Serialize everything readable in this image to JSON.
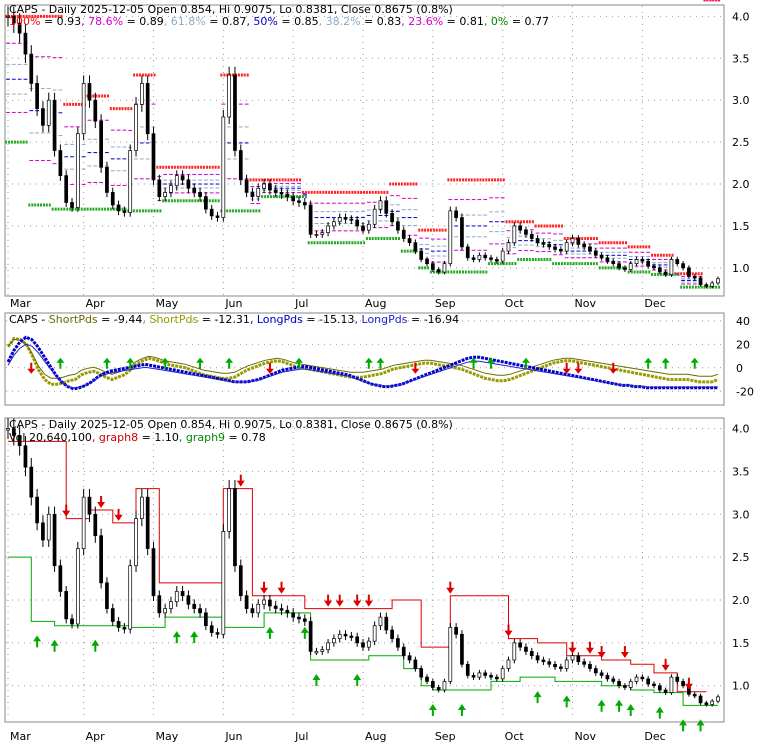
{
  "chart_data": [
    {
      "type": "candlestick",
      "ticker": "CAPS",
      "header": "CAPS - Daily 2025-12-05 Open 0.854, Hi 0.9075, Lo 0.8381, Close 0.8675 (0.8%)",
      "fib_levels": [
        {
          "label": "100%",
          "value": "0.93",
          "color": "#ff0000"
        },
        {
          "label": "78.6%",
          "value": "0.89",
          "color": "#cc00cc"
        },
        {
          "label": "61.8%",
          "value": "0.87",
          "color": "#8fa8c8"
        },
        {
          "label": "50%",
          "value": "0.85",
          "color": "#0000cc"
        },
        {
          "label": "38.2%",
          "value": "0.83",
          "color": "#8fa8c8"
        },
        {
          "label": "23.6%",
          "value": "0.81",
          "color": "#cc00cc"
        },
        {
          "label": "0%",
          "value": "0.77",
          "color": "#008800"
        }
      ],
      "x_months": [
        "Mar",
        "Apr",
        "May",
        "Jun",
        "Jul",
        "Aug",
        "Sep",
        "Oct",
        "Nov",
        "Dec"
      ],
      "y_ticks": [
        "4.0",
        "3.5",
        "3.0",
        "2.5",
        "2.0",
        "1.5",
        "1.0"
      ],
      "ylim": [
        0.7,
        4.1
      ],
      "closes": [
        4.0,
        3.92,
        3.8,
        3.55,
        3.2,
        2.9,
        2.7,
        3.0,
        2.4,
        2.1,
        1.78,
        1.72,
        2.6,
        3.2,
        3.0,
        2.75,
        2.2,
        1.9,
        1.75,
        1.68,
        1.66,
        2.4,
        2.95,
        3.2,
        2.6,
        2.05,
        1.85,
        1.9,
        1.98,
        2.1,
        2.05,
        1.95,
        1.9,
        1.85,
        1.7,
        1.62,
        1.6,
        2.8,
        3.3,
        2.4,
        2.05,
        1.9,
        1.85,
        1.95,
        2.0,
        1.93,
        1.9,
        1.88,
        1.85,
        1.8,
        1.78,
        1.75,
        1.4,
        1.4,
        1.42,
        1.5,
        1.55,
        1.6,
        1.58,
        1.57,
        1.5,
        1.45,
        1.52,
        1.7,
        1.8,
        1.65,
        1.55,
        1.45,
        1.35,
        1.3,
        1.2,
        1.1,
        1.05,
        0.98,
        0.95,
        1.05,
        1.68,
        1.6,
        1.25,
        1.12,
        1.1,
        1.15,
        1.12,
        1.1,
        1.08,
        1.2,
        1.3,
        1.5,
        1.45,
        1.4,
        1.35,
        1.3,
        1.28,
        1.25,
        1.22,
        1.2,
        1.3,
        1.35,
        1.28,
        1.25,
        1.2,
        1.15,
        1.12,
        1.08,
        1.05,
        1.0,
        0.98,
        1.05,
        1.1,
        1.08,
        1.02,
        1.0,
        0.95,
        0.92,
        1.1,
        1.05,
        1.0,
        0.9,
        0.88,
        0.8,
        0.78,
        0.82,
        0.87
      ],
      "lower_lims": [
        2.5,
        2.5,
        2.5,
        2.5,
        1.75,
        1.75,
        1.75,
        1.75,
        1.7,
        1.7,
        1.7,
        1.7,
        1.7,
        1.7,
        1.7,
        1.7,
        1.7,
        1.7,
        1.7,
        1.7,
        1.7,
        1.68,
        1.68,
        1.68,
        1.68,
        1.68,
        1.68,
        1.8,
        1.8,
        1.8,
        1.8,
        1.8,
        1.8,
        1.8,
        1.8,
        1.8,
        1.8,
        1.68,
        1.68,
        1.68,
        1.68,
        1.68,
        1.68,
        1.68,
        1.85,
        1.85,
        1.85,
        1.85,
        1.85,
        1.85,
        1.85,
        1.85,
        1.3,
        1.3,
        1.3,
        1.3,
        1.3,
        1.3,
        1.3,
        1.3,
        1.3,
        1.3,
        1.35,
        1.35,
        1.35,
        1.35,
        1.35,
        1.35,
        1.2,
        1.2,
        1.2,
        1.0,
        1.0,
        0.95,
        0.95,
        0.95,
        0.95,
        0.95,
        0.95,
        0.95,
        0.95,
        0.95,
        0.95,
        1.05,
        1.05,
        1.05,
        1.05,
        1.05,
        1.1,
        1.1,
        1.1,
        1.1,
        1.1,
        1.1,
        1.05,
        1.05,
        1.05,
        1.05,
        1.05,
        1.05,
        1.05,
        1.05,
        1.0,
        1.0,
        1.0,
        1.0,
        1.0,
        0.95,
        0.95,
        0.95,
        0.95,
        0.92,
        0.92,
        0.92,
        0.92,
        0.92,
        0.77,
        0.77,
        0.77,
        0.77,
        0.77,
        0.77,
        0.77
      ],
      "upper_lims": [
        4.0,
        4.0,
        4.0,
        4.0,
        4.0,
        4.0,
        4.0,
        4.0,
        4.0,
        4.0,
        2.95,
        2.95,
        2.95,
        2.95,
        3.05,
        3.05,
        3.05,
        3.05,
        2.9,
        2.9,
        2.9,
        2.9,
        3.3,
        3.3,
        3.3,
        3.3,
        2.2,
        2.2,
        2.2,
        2.2,
        2.2,
        2.2,
        2.2,
        2.2,
        2.2,
        2.2,
        2.2,
        3.3,
        3.3,
        3.3,
        3.3,
        3.3,
        2.05,
        2.05,
        2.05,
        2.05,
        2.05,
        2.05,
        2.05,
        2.05,
        2.05,
        1.9,
        1.9,
        1.9,
        1.9,
        1.9,
        1.9,
        1.9,
        1.9,
        1.9,
        1.9,
        1.9,
        1.9,
        1.9,
        1.9,
        1.9,
        2.0,
        2.0,
        2.0,
        2.0,
        2.0,
        1.45,
        1.45,
        1.45,
        1.45,
        1.45,
        2.05,
        2.05,
        2.05,
        2.05,
        2.05,
        2.05,
        2.05,
        2.05,
        2.05,
        2.05,
        1.55,
        1.55,
        1.55,
        1.55,
        1.55,
        1.5,
        1.5,
        1.5,
        1.5,
        1.5,
        1.35,
        1.35,
        1.35,
        1.35,
        1.35,
        1.35,
        1.3,
        1.3,
        1.3,
        1.3,
        1.3,
        1.25,
        1.25,
        1.25,
        1.25,
        1.15,
        1.15,
        1.15,
        1.15,
        0.93,
        0.93,
        0.93,
        0.93,
        0.93
      ]
    },
    {
      "type": "line",
      "header": "CAPS",
      "legend": [
        {
          "name": "ShortPds",
          "value": "-9.44",
          "color": "#6b6b00"
        },
        {
          "name": "ShortPds",
          "value": "-12.31",
          "color": "#999900"
        },
        {
          "name": "LongPds",
          "value": "-15.13",
          "color": "#0000cc"
        },
        {
          "name": "LongPds",
          "value": "-16.94",
          "color": "#2222cc"
        }
      ],
      "y_ticks": [
        "40",
        "20",
        "0",
        "-20"
      ],
      "ylim": [
        -30,
        45
      ],
      "series": [
        {
          "name": "ShortPds",
          "values": [
            18,
            25,
            24,
            20,
            10,
            -2,
            -10,
            -14,
            -14,
            -13,
            -11,
            -10,
            -6,
            -4,
            -3,
            -5,
            -8,
            -10,
            -8,
            -6,
            -2,
            3,
            6,
            8,
            7,
            5,
            3,
            2,
            1,
            0,
            -2,
            -4,
            -6,
            -7,
            -8,
            -9,
            -9,
            -8,
            -5,
            -2,
            0,
            2,
            4,
            5,
            6,
            5,
            3,
            1,
            0,
            -1,
            -2,
            -3,
            -4,
            -5,
            -6,
            -7,
            -8,
            -8,
            -8,
            -7,
            -6,
            -5,
            -3,
            -1,
            0,
            1,
            2,
            3,
            4,
            4,
            3,
            2,
            1,
            0,
            -1,
            -3,
            -5,
            -7,
            -9,
            -10,
            -11,
            -11,
            -10,
            -8,
            -6,
            -4,
            -2,
            0,
            2,
            4,
            5,
            6,
            6,
            5,
            4,
            3,
            2,
            1,
            0,
            -1,
            -2,
            -3,
            -4,
            -5,
            -6,
            -7,
            -8,
            -9,
            -10,
            -10,
            -10,
            -10,
            -11,
            -12,
            -12,
            -12,
            -10
          ]
        },
        {
          "name": "LongPds",
          "values": [
            5,
            15,
            22,
            26,
            24,
            18,
            10,
            2,
            -6,
            -12,
            -16,
            -18,
            -17,
            -15,
            -12,
            -8,
            -5,
            -3,
            -2,
            -1,
            0,
            1,
            2,
            3,
            2,
            1,
            0,
            -1,
            -2,
            -3,
            -4,
            -5,
            -6,
            -7,
            -8,
            -9,
            -10,
            -11,
            -12,
            -12,
            -12,
            -11,
            -10,
            -8,
            -6,
            -4,
            -2,
            -1,
            0,
            1,
            1,
            0,
            -1,
            -2,
            -3,
            -4,
            -5,
            -6,
            -8,
            -10,
            -12,
            -14,
            -15,
            -16,
            -16,
            -15,
            -14,
            -12,
            -10,
            -8,
            -6,
            -4,
            -2,
            0,
            2,
            4,
            6,
            8,
            9,
            9,
            8,
            7,
            6,
            5,
            4,
            3,
            2,
            1,
            0,
            -1,
            -2,
            -3,
            -4,
            -5,
            -6,
            -7,
            -8,
            -9,
            -10,
            -11,
            -12,
            -13,
            -14,
            -15,
            -15,
            -16,
            -16,
            -17,
            -17,
            -17,
            -17,
            -17,
            -17,
            -17,
            -17,
            -17,
            -17,
            -17,
            -17,
            -17
          ]
        }
      ]
    },
    {
      "type": "candlestick",
      "header": "CAPS - Daily 2025-12-05 Open 0.854, Hi 0.9075, Lo 0.8381, Close 0.8675 (0.8%)",
      "subheader": "Vol 20,640,100",
      "legend": [
        {
          "name": "graph8",
          "value": "1.10",
          "color": "#cc0000"
        },
        {
          "name": "graph9",
          "value": "0.78",
          "color": "#008800"
        }
      ],
      "y_ticks": [
        "4.0",
        "3.5",
        "3.0",
        "2.5",
        "2.0",
        "1.5",
        "1.0"
      ],
      "ylim": [
        0.6,
        4.1
      ]
    }
  ],
  "colors": {
    "up_arrow": "#00aa00",
    "down_arrow": "#dd0000",
    "resistance": "#ff2222",
    "support": "#22aa22"
  }
}
